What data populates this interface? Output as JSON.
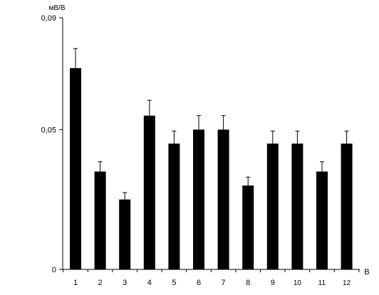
{
  "chart_data": {
    "type": "bar",
    "title": "",
    "ylabel": "мВ/В",
    "xlabel": "В",
    "categories": [
      "1",
      "2",
      "3",
      "4",
      "5",
      "6",
      "7",
      "8",
      "9",
      "10",
      "11",
      "12"
    ],
    "values": [
      0.072,
      0.035,
      0.025,
      0.055,
      0.045,
      0.05,
      0.05,
      0.03,
      0.045,
      0.045,
      0.035,
      0.045
    ],
    "errors": [
      0.007,
      0.0035,
      0.0025,
      0.0055,
      0.0045,
      0.005,
      0.005,
      0.003,
      0.0045,
      0.0045,
      0.0035,
      0.0045
    ],
    "ylim": [
      0,
      0.09
    ],
    "y_ticks": [
      {
        "value": 0,
        "label": "0"
      },
      {
        "value": 0.05,
        "label": "0,05"
      },
      {
        "value": 0.09,
        "label": "0,09"
      }
    ],
    "grid": false,
    "legend": "none",
    "colors": {
      "bar": "#000000",
      "axis": "#000000",
      "background": "#ffffff"
    }
  }
}
